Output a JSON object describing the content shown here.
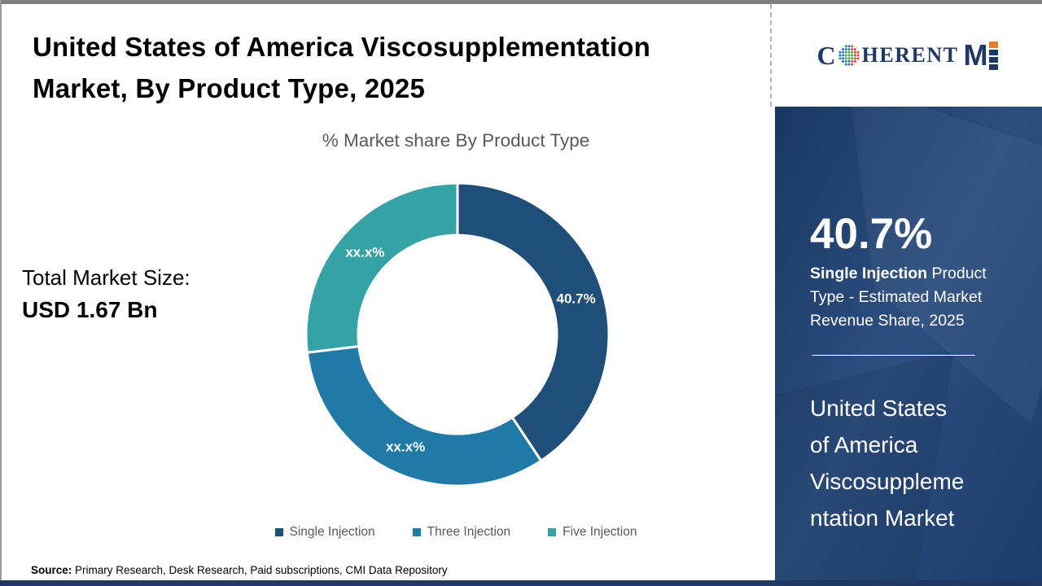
{
  "header": {
    "title_lines": [
      "United States of America Viscosupplementation",
      "Market, By Product Type, 2025"
    ],
    "subtitle": "% Market share By Product Type"
  },
  "logo": {
    "brand_prefix": "C",
    "brand_rest": "HERENT",
    "brand_m": "M",
    "colors": {
      "navy": "#1F3864",
      "orange": "#E87B2E",
      "green": "#4AA546",
      "blue": "#2E75B6",
      "red": "#D4483E"
    }
  },
  "stats": {
    "total_label": "Total Market Size:",
    "total_value": "USD 1.67 Bn"
  },
  "chart_data": {
    "type": "pie",
    "subtype": "donut",
    "title": "% Market share By Product Type",
    "unit": "%",
    "start_angle_deg": 0,
    "direction": "clockwise",
    "inner_radius_ratio": 0.655,
    "slices": [
      {
        "name": "Single Injection",
        "value": 40.7,
        "label": "40.7%",
        "color": "#1F4E79"
      },
      {
        "name": "Three Injection",
        "value": 32.4,
        "label": "xx.x%",
        "color": "#2179A5"
      },
      {
        "name": "Five Injection",
        "value": 26.9,
        "label": "xx.x%",
        "color": "#35A2A6"
      }
    ],
    "legend_position": "bottom"
  },
  "sidebar": {
    "highlight_value": "40.7%",
    "highlight_bold": "Single Injection",
    "highlight_rest": " Product Type - Estimated Market Revenue Share, 2025",
    "market_name_lines": [
      "United States",
      "of America",
      "Viscosuppleme",
      "ntation Market"
    ],
    "bg_color": "#1F4377"
  },
  "footer": {
    "source_label": "Source:",
    "source_text": " Primary Research, Desk Research, Paid subscriptions, CMI Data Repository"
  }
}
